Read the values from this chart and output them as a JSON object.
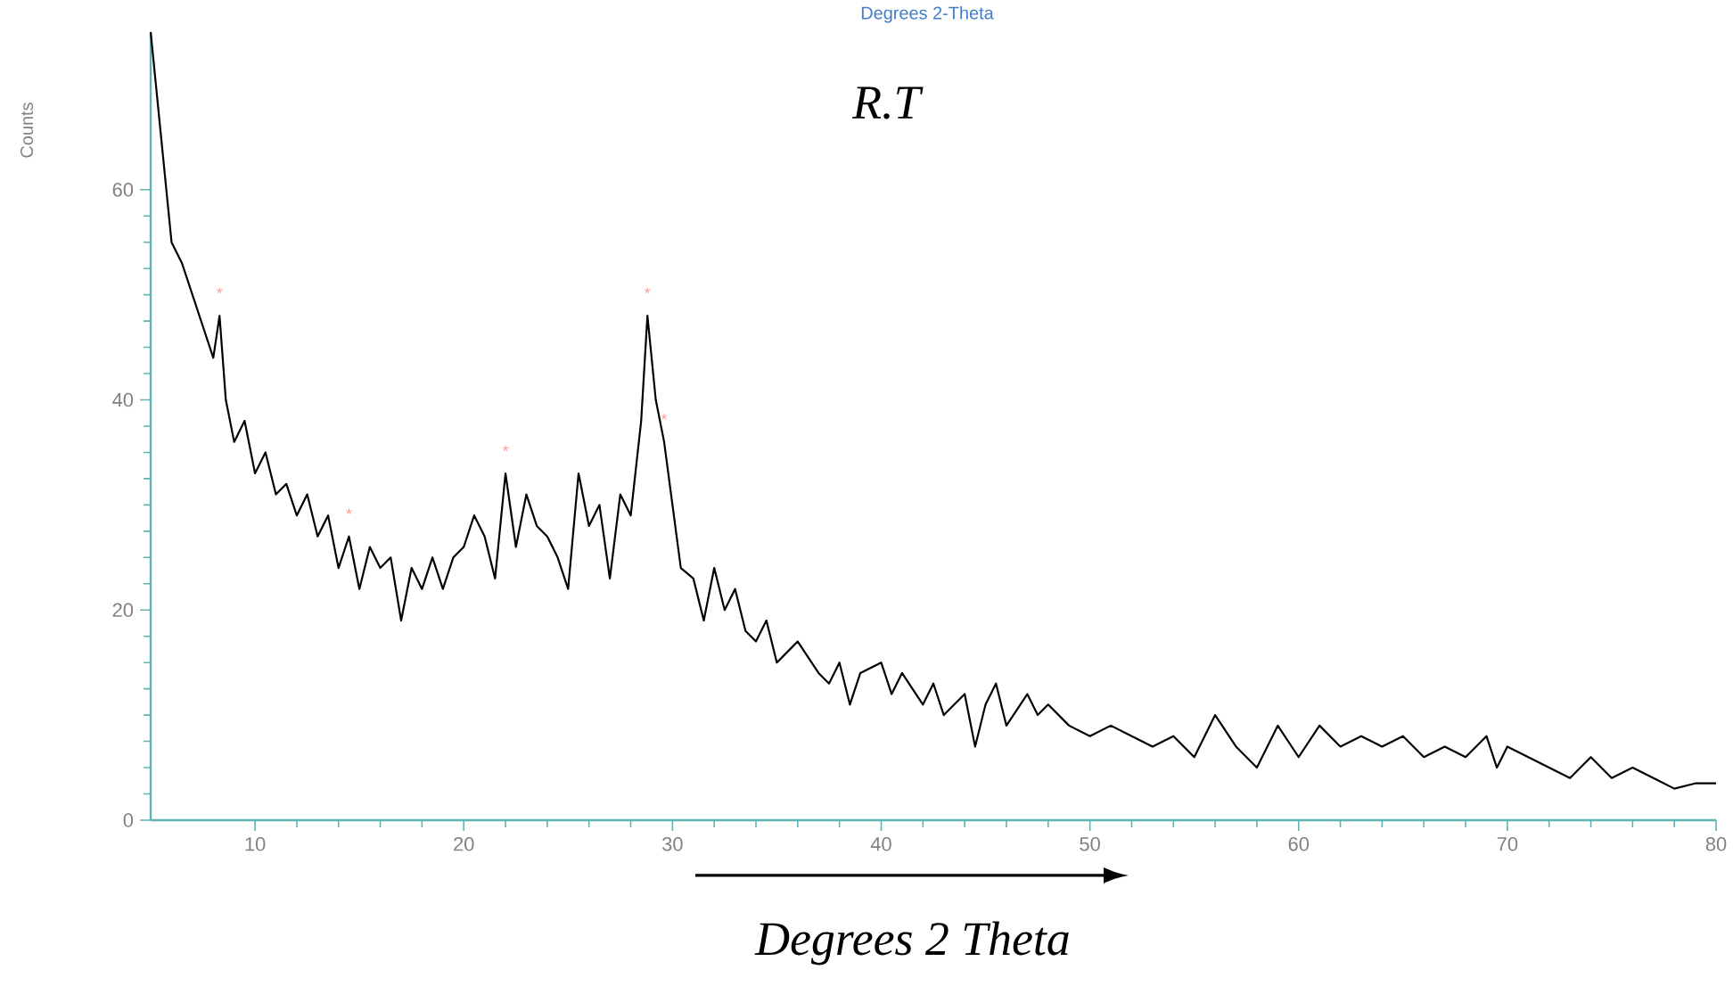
{
  "chart_data": {
    "type": "line",
    "title": "Degrees 2-Theta",
    "xlabel": "Degrees 2 Theta",
    "ylabel": "Counts",
    "annotations": [
      "R.T",
      {
        "text": "*",
        "x": 8.3,
        "y": 48
      },
      {
        "text": "*",
        "x": 14.5,
        "y": 27
      },
      {
        "text": "*",
        "x": 22,
        "y": 33
      },
      {
        "text": "*",
        "x": 28.8,
        "y": 48
      },
      {
        "text": "*",
        "x": 29.6,
        "y": 36
      }
    ],
    "x": [
      5,
      5.5,
      6,
      6.5,
      7,
      7.5,
      8,
      8.3,
      8.6,
      9,
      9.5,
      10,
      10.5,
      11,
      11.5,
      12,
      12.5,
      13,
      13.5,
      14,
      14.5,
      15,
      15.5,
      16,
      16.5,
      17,
      17.5,
      18,
      18.5,
      19,
      19.5,
      20,
      20.5,
      21,
      21.5,
      22,
      22.5,
      23,
      23.5,
      24,
      24.5,
      25,
      25.5,
      26,
      26.5,
      27,
      27.5,
      28,
      28.5,
      28.8,
      29.2,
      29.6,
      30,
      30.4,
      31,
      31.5,
      32,
      32.5,
      33,
      33.5,
      34,
      34.5,
      35,
      35.5,
      36,
      37,
      37.5,
      38,
      38.5,
      39,
      40,
      40.5,
      41,
      42,
      42.5,
      43,
      44,
      44.5,
      45,
      45.5,
      46,
      47,
      47.5,
      48,
      49,
      50,
      51,
      52,
      53,
      54,
      55,
      56,
      57,
      58,
      59,
      60,
      61,
      62,
      63,
      64,
      65,
      66,
      67,
      68,
      69,
      69.5,
      70,
      71,
      72,
      73,
      74,
      75,
      76,
      77,
      78,
      79,
      80
    ],
    "series": [
      {
        "color": "#000000",
        "values": [
          75,
          65,
          55,
          53,
          50,
          47,
          44,
          48,
          40,
          36,
          38,
          33,
          35,
          31,
          32,
          29,
          31,
          27,
          29,
          24,
          27,
          22,
          26,
          24,
          25,
          19,
          24,
          22,
          25,
          22,
          25,
          26,
          29,
          27,
          23,
          33,
          26,
          31,
          28,
          27,
          25,
          22,
          33,
          28,
          30,
          23,
          31,
          29,
          38,
          48,
          40,
          36,
          30,
          24,
          23,
          19,
          24,
          20,
          22,
          18,
          17,
          19,
          15,
          16,
          17,
          14,
          13,
          15,
          11,
          14,
          15,
          12,
          14,
          11,
          13,
          10,
          12,
          7,
          11,
          13,
          9,
          12,
          10,
          11,
          9,
          8,
          9,
          8,
          7,
          8,
          6,
          10,
          7,
          5,
          9,
          6,
          9,
          7,
          8,
          7,
          8,
          6,
          7,
          6,
          8,
          5,
          7,
          6,
          5,
          4,
          6,
          4,
          5,
          4,
          3,
          3.5,
          3.5
        ]
      }
    ],
    "xlim": [
      5,
      80
    ],
    "ylim": [
      0,
      75
    ],
    "xticks": [
      10,
      20,
      30,
      40,
      50,
      60,
      70,
      80
    ],
    "yticks": [
      0,
      20,
      40,
      60
    ],
    "grid": false,
    "marker": "none",
    "line_style": "solid"
  }
}
